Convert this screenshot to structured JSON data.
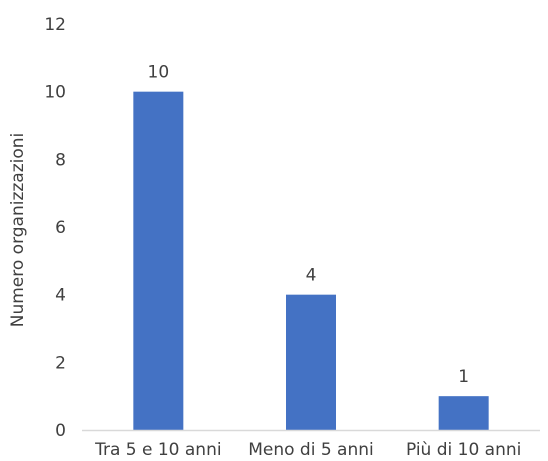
{
  "chart_data": {
    "type": "bar",
    "categories": [
      "Tra 5 e 10 anni",
      "Meno di 5 anni",
      "Più di 10 anni"
    ],
    "values": [
      10,
      4,
      1
    ],
    "data_labels": [
      "10",
      "4",
      "1"
    ],
    "title": "",
    "xlabel": "",
    "ylabel": "Numero organizzazioni",
    "ylim": [
      0,
      12
    ],
    "yticks": [
      "0",
      "2",
      "4",
      "6",
      "8",
      "10",
      "12"
    ],
    "grid": false,
    "legend": "none",
    "bar_color": "#4472C4",
    "axis_line_color": "#D9D9D9",
    "text_color": "#404040"
  }
}
